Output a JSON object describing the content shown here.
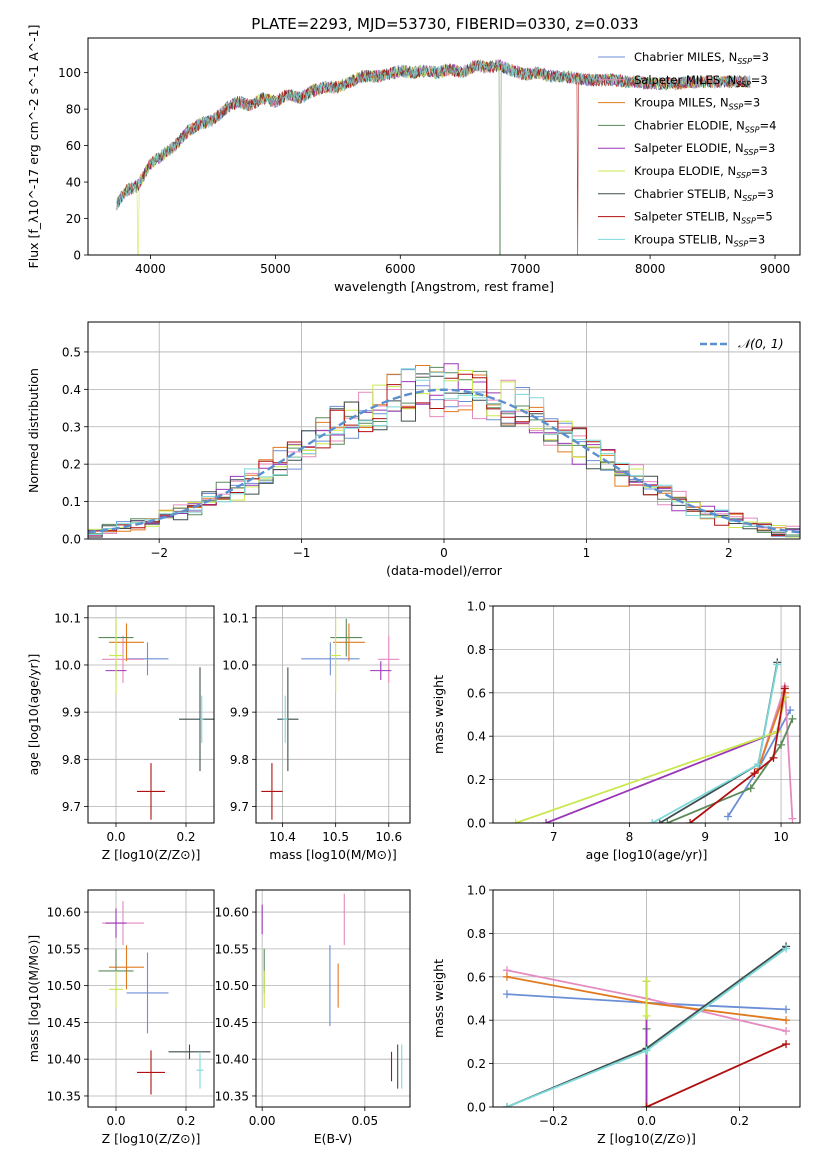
{
  "figure": {
    "title": "PLATE=2293, MJD=53730, FIBERID=0330, z=0.033"
  },
  "models": [
    {
      "name": "Chabrier MILES",
      "nssp": "3",
      "color": "#6b8fd6"
    },
    {
      "name": "Salpeter MILES",
      "nssp": "3",
      "color": "#e58ac0"
    },
    {
      "name": "Kroupa MILES",
      "nssp": "3",
      "color": "#e07a1f"
    },
    {
      "name": "Chabrier ELODIE",
      "nssp": "4",
      "color": "#5b8a5b"
    },
    {
      "name": "Salpeter ELODIE",
      "nssp": "3",
      "color": "#9b35b8"
    },
    {
      "name": "Kroupa ELODIE",
      "nssp": "3",
      "color": "#c9e84f"
    },
    {
      "name": "Chabrier STELIB",
      "nssp": "3",
      "color": "#3f4f4f"
    },
    {
      "name": "Salpeter STELIB",
      "nssp": "5",
      "color": "#b01010"
    },
    {
      "name": "Kroupa STELIB",
      "nssp": "3",
      "color": "#7dd8d8"
    }
  ],
  "chart_data": [
    {
      "id": "spectrum",
      "type": "line",
      "xlabel": "wavelength [Angstrom, rest frame]",
      "ylabel": "Flux [f_λ10^-17 erg cm^-2 s^-1 A^-1]",
      "xlim": [
        3500,
        9200
      ],
      "ylim": [
        0,
        119
      ],
      "xticks": [
        4000,
        5000,
        6000,
        7000,
        8000,
        9000
      ],
      "yticks": [
        0,
        20,
        40,
        60,
        80,
        100
      ],
      "grid": false,
      "legend": "top-right",
      "continuum": {
        "x": [
          3730,
          3800,
          3900,
          4000,
          4100,
          4200,
          4300,
          4400,
          4500,
          4600,
          4700,
          4800,
          4900,
          5000,
          5100,
          5200,
          5300,
          5400,
          5500,
          5600,
          5700,
          5800,
          5900,
          6000,
          6100,
          6200,
          6300,
          6400,
          6500,
          6600,
          6700,
          6800,
          6900,
          7000,
          7100,
          7200,
          7300,
          7400,
          7500,
          7600,
          7700,
          7800,
          7900,
          8000,
          8200,
          8400,
          8600,
          8800
        ],
        "y": [
          28,
          35,
          38,
          50,
          55,
          60,
          68,
          72,
          74,
          80,
          84,
          82,
          86,
          84,
          88,
          86,
          90,
          92,
          92,
          95,
          98,
          98,
          99,
          101,
          100,
          101,
          100,
          102,
          100,
          104,
          103,
          104,
          101,
          99,
          100,
          98,
          98,
          97,
          96,
          96,
          96,
          95,
          95,
          94,
          94,
          95,
          95,
          95
        ]
      },
      "dropouts": [
        {
          "model": "Kroupa ELODIE",
          "x": 3900
        },
        {
          "model": "Chabrier ELODIE",
          "x": 6800
        },
        {
          "model": "Salpeter STELIB",
          "x": 7420
        }
      ]
    },
    {
      "id": "residual-histogram",
      "type": "histogram",
      "xlabel": "(data-model)/error",
      "ylabel": "Normed distribution",
      "xlim": [
        -2.5,
        2.5
      ],
      "ylim": [
        0,
        0.58
      ],
      "xticks": [
        -2,
        -1,
        0,
        1,
        2
      ],
      "yticks": [
        0.0,
        0.1,
        0.2,
        0.3,
        0.4,
        0.5
      ],
      "grid": true,
      "legend": "top-right",
      "reference": {
        "label": "𝒩(0, 1)",
        "mean": 0,
        "sigma": 1
      }
    },
    {
      "id": "age-vs-z",
      "type": "scatter",
      "xlabel": "Z [log10(Z/Z⊙)]",
      "ylabel": "age  [log10(age/yr)]",
      "xlim": [
        -0.08,
        0.28
      ],
      "ylim": [
        9.665,
        10.125
      ],
      "xticks": [
        0.0,
        0.2
      ],
      "yticks": [
        9.7,
        9.8,
        9.9,
        10.0,
        10.1
      ],
      "grid": true,
      "points": [
        {
          "model": "Chabrier MILES",
          "x": 0.09,
          "y": 10.013,
          "xerr": 0.06,
          "yerr": 0.035
        },
        {
          "model": "Salpeter MILES",
          "x": 0.02,
          "y": 10.012,
          "xerr": 0.06,
          "yerr": 0.05
        },
        {
          "model": "Kroupa MILES",
          "x": 0.03,
          "y": 10.048,
          "xerr": 0.05,
          "yerr": 0.04
        },
        {
          "model": "Chabrier ELODIE",
          "x": 0.0,
          "y": 10.058,
          "xerr": 0.05,
          "yerr": 0.04
        },
        {
          "model": "Salpeter ELODIE",
          "x": 0.0,
          "y": 9.988,
          "xerr": 0.03,
          "yerr": 0.02
        },
        {
          "model": "Kroupa ELODIE",
          "x": 0.0,
          "y": 10.02,
          "xerr": 0.02,
          "yerr": 0.08
        },
        {
          "model": "Chabrier STELIB",
          "x": 0.24,
          "y": 9.885,
          "xerr": 0.06,
          "yerr": 0.11
        },
        {
          "model": "Salpeter STELIB",
          "x": 0.1,
          "y": 9.732,
          "xerr": 0.04,
          "yerr": 0.06
        },
        {
          "model": "Kroupa STELIB",
          "x": 0.245,
          "y": 9.885,
          "xerr": 0.005,
          "yerr": 0.05
        }
      ]
    },
    {
      "id": "age-vs-mass",
      "type": "scatter",
      "xlabel": "mass [log10(M/M⊙)]",
      "ylabel": "",
      "xlim": [
        10.35,
        10.64
      ],
      "ylim": [
        9.665,
        10.125
      ],
      "xticks": [
        10.4,
        10.5,
        10.6
      ],
      "yticks": [
        9.7,
        9.8,
        9.9,
        10.0,
        10.1
      ],
      "grid": true,
      "points": [
        {
          "model": "Chabrier MILES",
          "x": 10.49,
          "y": 10.013,
          "xerr": 0.055,
          "yerr": 0.035
        },
        {
          "model": "Salpeter MILES",
          "x": 10.6,
          "y": 10.012,
          "xerr": 0.02,
          "yerr": 0.05
        },
        {
          "model": "Kroupa MILES",
          "x": 10.525,
          "y": 10.048,
          "xerr": 0.03,
          "yerr": 0.04
        },
        {
          "model": "Chabrier ELODIE",
          "x": 10.52,
          "y": 10.058,
          "xerr": 0.03,
          "yerr": 0.04
        },
        {
          "model": "Salpeter ELODIE",
          "x": 10.585,
          "y": 9.988,
          "xerr": 0.02,
          "yerr": 0.02
        },
        {
          "model": "Kroupa ELODIE",
          "x": 10.5,
          "y": 10.02,
          "xerr": 0.01,
          "yerr": 0.08
        },
        {
          "model": "Chabrier STELIB",
          "x": 10.41,
          "y": 9.885,
          "xerr": 0.02,
          "yerr": 0.11
        },
        {
          "model": "Salpeter STELIB",
          "x": 10.38,
          "y": 9.732,
          "xerr": 0.02,
          "yerr": 0.06
        },
        {
          "model": "Kroupa STELIB",
          "x": 10.405,
          "y": 9.885,
          "xerr": 0.005,
          "yerr": 0.05
        }
      ]
    },
    {
      "id": "weight-vs-age",
      "type": "line",
      "xlabel": "age  [log10(age/yr)]",
      "ylabel": "mass weight",
      "xlim": [
        6.2,
        10.25
      ],
      "ylim": [
        0.0,
        1.0
      ],
      "xticks": [
        7,
        8,
        9,
        10
      ],
      "yticks": [
        0.0,
        0.2,
        0.4,
        0.6,
        0.8,
        1.0
      ],
      "grid": true,
      "series": [
        {
          "model": "Chabrier MILES",
          "x": [
            9.3,
            9.7,
            10.12
          ],
          "y": [
            0.03,
            0.25,
            0.52
          ]
        },
        {
          "model": "Salpeter MILES",
          "x": [
            9.7,
            10.05,
            10.15
          ],
          "y": [
            0.25,
            0.63,
            0.02
          ]
        },
        {
          "model": "Kroupa MILES",
          "x": [
            9.7,
            10.05
          ],
          "y": [
            0.25,
            0.6
          ]
        },
        {
          "model": "Chabrier ELODIE",
          "x": [
            8.5,
            9.6,
            10.0,
            10.15
          ],
          "y": [
            0.0,
            0.16,
            0.36,
            0.48
          ]
        },
        {
          "model": "Salpeter ELODIE",
          "x": [
            6.9,
            9.95,
            10.05
          ],
          "y": [
            0.0,
            0.42,
            0.58
          ]
        },
        {
          "model": "Kroupa ELODIE",
          "x": [
            6.5,
            9.95,
            10.05
          ],
          "y": [
            0.0,
            0.42,
            0.58
          ]
        },
        {
          "model": "Chabrier STELIB",
          "x": [
            8.4,
            9.7,
            9.95
          ],
          "y": [
            0.0,
            0.27,
            0.74
          ]
        },
        {
          "model": "Salpeter STELIB",
          "x": [
            8.8,
            9.65,
            9.9,
            10.05
          ],
          "y": [
            0.0,
            0.23,
            0.3,
            0.62
          ]
        },
        {
          "model": "Kroupa STELIB",
          "x": [
            8.3,
            9.7,
            9.95
          ],
          "y": [
            0.0,
            0.27,
            0.73
          ]
        }
      ]
    },
    {
      "id": "mass-vs-z",
      "type": "scatter",
      "xlabel": "Z [log10(Z/Z⊙)]",
      "ylabel": "mass [log10(M/M⊙)]",
      "xlim": [
        -0.08,
        0.28
      ],
      "ylim": [
        10.335,
        10.63
      ],
      "xticks": [
        0.0,
        0.2
      ],
      "yticks": [
        10.35,
        10.4,
        10.45,
        10.5,
        10.55,
        10.6
      ],
      "grid": true,
      "points": [
        {
          "model": "Chabrier MILES",
          "x": 0.09,
          "y": 10.49,
          "xerr": 0.06,
          "yerr": 0.055
        },
        {
          "model": "Salpeter MILES",
          "x": 0.02,
          "y": 10.585,
          "xerr": 0.06,
          "yerr": 0.03
        },
        {
          "model": "Kroupa MILES",
          "x": 0.03,
          "y": 10.525,
          "xerr": 0.05,
          "yerr": 0.03
        },
        {
          "model": "Chabrier ELODIE",
          "x": 0.0,
          "y": 10.52,
          "xerr": 0.05,
          "yerr": 0.03
        },
        {
          "model": "Salpeter ELODIE",
          "x": 0.0,
          "y": 10.585,
          "xerr": 0.03,
          "yerr": 0.02
        },
        {
          "model": "Kroupa ELODIE",
          "x": 0.0,
          "y": 10.495,
          "xerr": 0.02,
          "yerr": 0.025
        },
        {
          "model": "Chabrier STELIB",
          "x": 0.21,
          "y": 10.41,
          "xerr": 0.06,
          "yerr": 0.01
        },
        {
          "model": "Salpeter STELIB",
          "x": 0.1,
          "y": 10.382,
          "xerr": 0.04,
          "yerr": 0.03
        },
        {
          "model": "Kroupa STELIB",
          "x": 0.24,
          "y": 10.385,
          "xerr": 0.01,
          "yerr": 0.025
        }
      ]
    },
    {
      "id": "mass-vs-ebv",
      "type": "scatter",
      "xlabel": "E(B-V)",
      "ylabel": "",
      "xlim": [
        -0.003,
        0.072
      ],
      "ylim": [
        10.335,
        10.63
      ],
      "xticks": [
        0.0,
        0.05
      ],
      "yticks": [
        10.35,
        10.4,
        10.45,
        10.5,
        10.55,
        10.6
      ],
      "grid": true,
      "points": [
        {
          "model": "Chabrier MILES",
          "x": 0.033,
          "y": 10.5,
          "xerr": 0,
          "yerr": 0.055
        },
        {
          "model": "Salpeter MILES",
          "x": 0.04,
          "y": 10.59,
          "xerr": 0,
          "yerr": 0.035
        },
        {
          "model": "Kroupa MILES",
          "x": 0.037,
          "y": 10.5,
          "xerr": 0,
          "yerr": 0.03
        },
        {
          "model": "Chabrier ELODIE",
          "x": 0.001,
          "y": 10.52,
          "xerr": 0,
          "yerr": 0.03
        },
        {
          "model": "Salpeter ELODIE",
          "x": 0.0,
          "y": 10.59,
          "xerr": 0,
          "yerr": 0.02
        },
        {
          "model": "Kroupa ELODIE",
          "x": 0.001,
          "y": 10.495,
          "xerr": 0,
          "yerr": 0.025
        },
        {
          "model": "Chabrier STELIB",
          "x": 0.066,
          "y": 10.39,
          "xerr": 0,
          "yerr": 0.03
        },
        {
          "model": "Salpeter STELIB",
          "x": 0.063,
          "y": 10.39,
          "xerr": 0,
          "yerr": 0.02
        },
        {
          "model": "Kroupa STELIB",
          "x": 0.068,
          "y": 10.39,
          "xerr": 0,
          "yerr": 0.03
        }
      ]
    },
    {
      "id": "weight-vs-z",
      "type": "line",
      "xlabel": "Z [log10(Z/Z⊙)]",
      "ylabel": "mass weight",
      "xlim": [
        -0.33,
        0.33
      ],
      "ylim": [
        0.0,
        1.0
      ],
      "xticks": [
        -0.2,
        0.0,
        0.2
      ],
      "yticks": [
        0.0,
        0.2,
        0.4,
        0.6,
        0.8,
        1.0
      ],
      "grid": true,
      "series": [
        {
          "model": "Chabrier MILES",
          "x": [
            -0.3,
            0.0,
            0.3
          ],
          "y": [
            0.52,
            0.48,
            0.45
          ]
        },
        {
          "model": "Salpeter MILES",
          "x": [
            -0.3,
            0.0,
            0.3
          ],
          "y": [
            0.63,
            0.5,
            0.35
          ]
        },
        {
          "model": "Kroupa MILES",
          "x": [
            -0.3,
            0.0,
            0.3
          ],
          "y": [
            0.6,
            0.48,
            0.4
          ]
        },
        {
          "model": "Chabrier ELODIE",
          "x": [
            0.0,
            0.0
          ],
          "y": [
            0.0,
            0.36
          ]
        },
        {
          "model": "Salpeter ELODIE",
          "x": [
            0.0,
            0.0
          ],
          "y": [
            0.0,
            0.58
          ]
        },
        {
          "model": "Kroupa ELODIE",
          "x": [
            0.0,
            0.0
          ],
          "y": [
            0.42,
            0.58
          ]
        },
        {
          "model": "Chabrier STELIB",
          "x": [
            -0.3,
            0.0,
            0.3
          ],
          "y": [
            0.0,
            0.27,
            0.74
          ]
        },
        {
          "model": "Salpeter STELIB",
          "x": [
            0.0,
            0.3
          ],
          "y": [
            0.0,
            0.29
          ]
        },
        {
          "model": "Kroupa STELIB",
          "x": [
            -0.3,
            0.0,
            0.3
          ],
          "y": [
            0.0,
            0.26,
            0.73
          ]
        }
      ]
    }
  ]
}
